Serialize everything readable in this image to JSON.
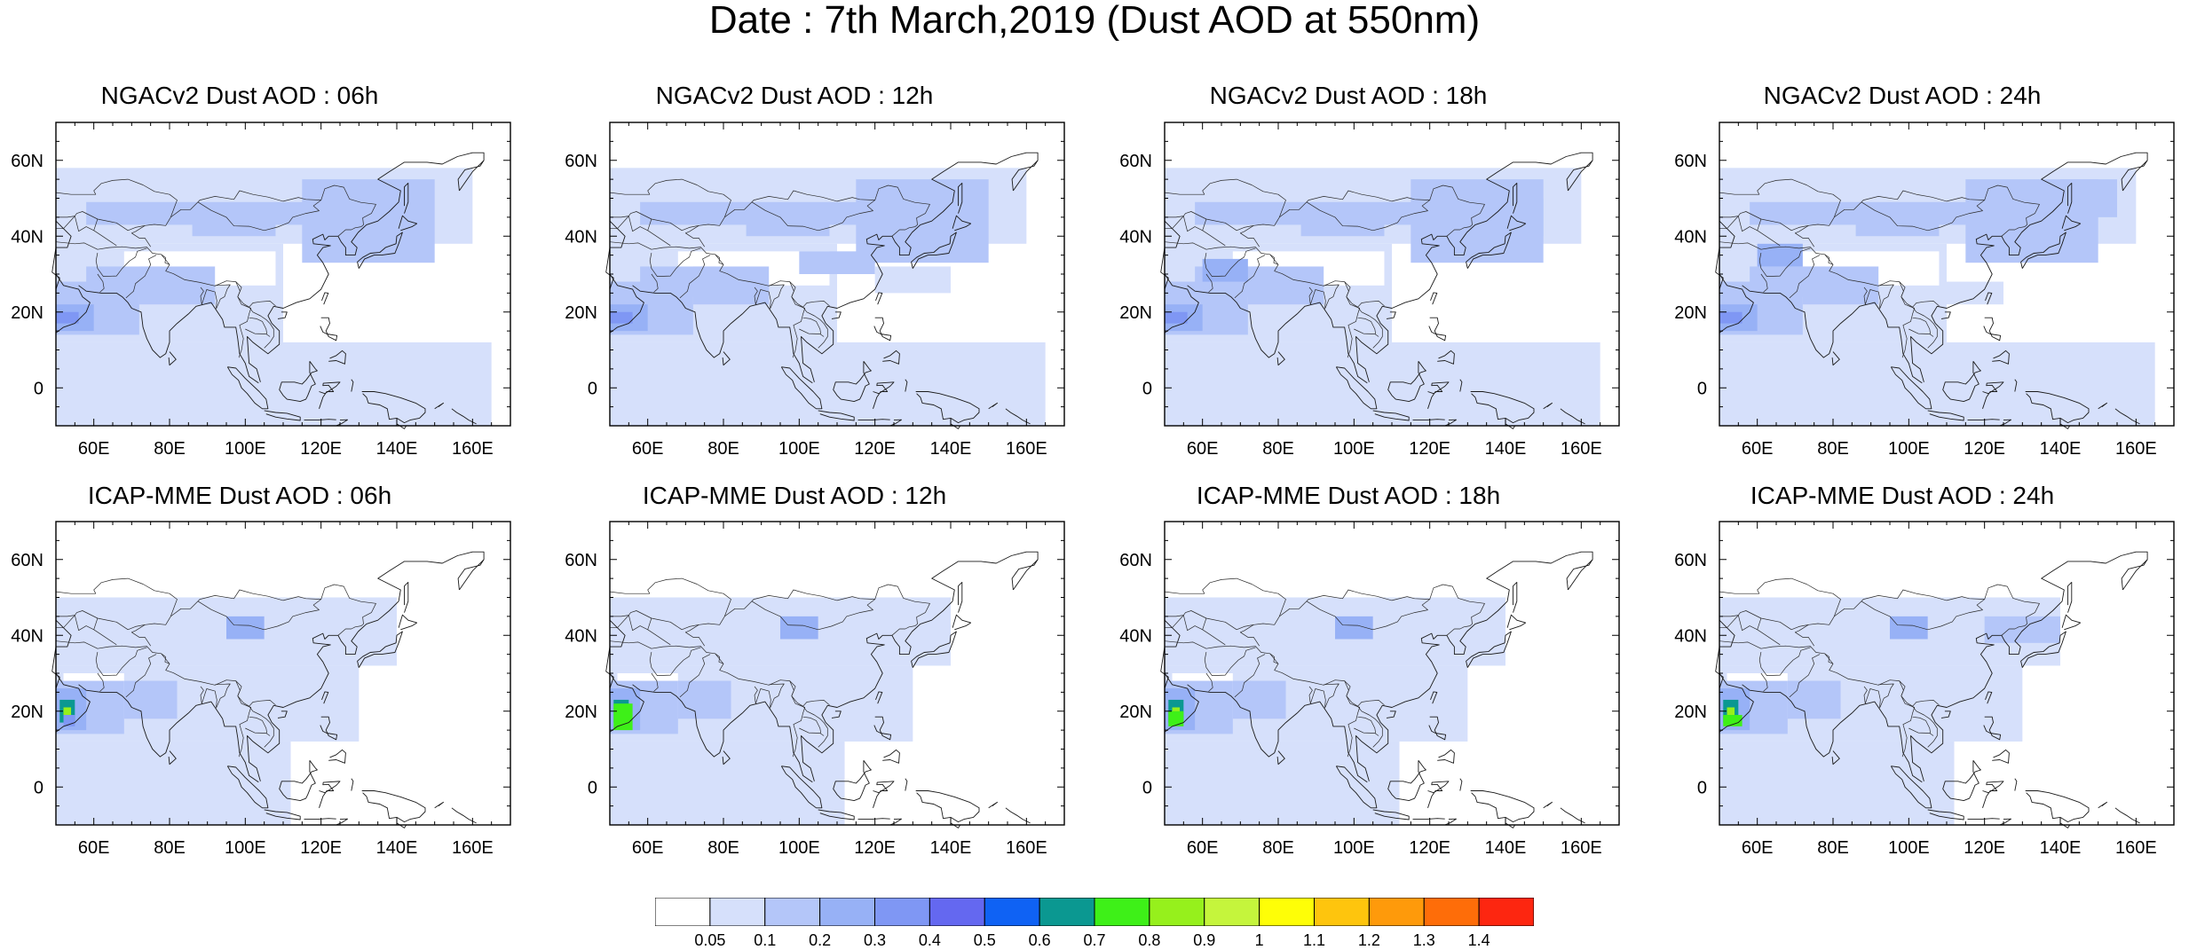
{
  "title": "Date : 7th March,2019 (Dust AOD at 550nm)",
  "axes": {
    "lat_ticks": [
      "60N",
      "40N",
      "20N",
      "0"
    ],
    "lon_ticks": [
      "60E",
      "80E",
      "100E",
      "120E",
      "140E",
      "160E"
    ],
    "lat_values": [
      60,
      40,
      20,
      0
    ],
    "lon_values": [
      60,
      80,
      100,
      120,
      140,
      160
    ],
    "lon_range": [
      50,
      170
    ],
    "lat_range": [
      -10,
      70
    ]
  },
  "panels": [
    {
      "title": "NGACv2 Dust AOD : 06h",
      "model": "NGACv2",
      "hour": "06h"
    },
    {
      "title": "NGACv2 Dust AOD : 12h",
      "model": "NGACv2",
      "hour": "12h"
    },
    {
      "title": "NGACv2 Dust AOD : 18h",
      "model": "NGACv2",
      "hour": "18h"
    },
    {
      "title": "NGACv2 Dust AOD : 24h",
      "model": "NGACv2",
      "hour": "24h"
    },
    {
      "title": "ICAP-MME Dust AOD : 06h",
      "model": "ICAP-MME",
      "hour": "06h"
    },
    {
      "title": "ICAP-MME Dust AOD : 12h",
      "model": "ICAP-MME",
      "hour": "12h"
    },
    {
      "title": "ICAP-MME Dust AOD : 18h",
      "model": "ICAP-MME",
      "hour": "18h"
    },
    {
      "title": "ICAP-MME Dust AOD : 24h",
      "model": "ICAP-MME",
      "hour": "24h"
    }
  ],
  "colorbar": {
    "labels": [
      "0.05",
      "0.1",
      "0.2",
      "0.3",
      "0.4",
      "0.5",
      "0.6",
      "0.7",
      "0.8",
      "0.9",
      "1",
      "1.1",
      "1.2",
      "1.3",
      "1.4"
    ],
    "colors": [
      "#ffffff",
      "#d6e0fb",
      "#b4c6f9",
      "#97b1f6",
      "#7f97f4",
      "#6468f0",
      "#0f62f4",
      "#0b9891",
      "#3ef018",
      "#96f01c",
      "#c5f53c",
      "#fefe07",
      "#fec50d",
      "#fe9a0b",
      "#fe6d09",
      "#fd2610"
    ]
  }
}
